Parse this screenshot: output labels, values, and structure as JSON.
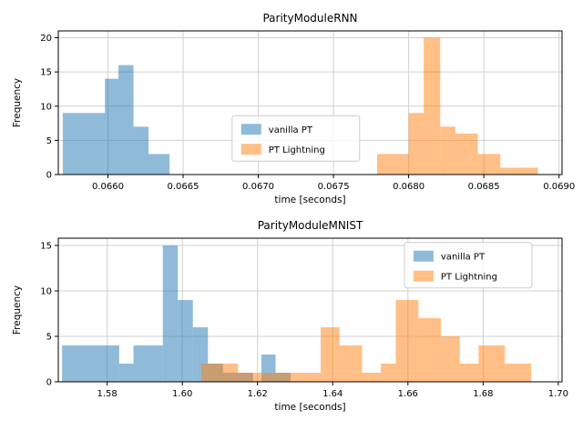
{
  "figure": {
    "background": "#ffffff",
    "grid_color": "#d0d0d0",
    "spine_color": "#000000"
  },
  "chart_data": [
    {
      "type": "bar",
      "subtype": "histogram",
      "title": "ParityModuleRNN",
      "xlabel": "time [seconds]",
      "ylabel": "Frequency",
      "xlim": [
        0.06567,
        0.06902
      ],
      "ylim": [
        0,
        21
      ],
      "xticks": [
        0.066,
        0.0665,
        0.067,
        0.0675,
        0.068,
        0.0685,
        0.069
      ],
      "xtick_labels": [
        "0.0660",
        "0.0665",
        "0.0670",
        "0.0675",
        "0.0680",
        "0.0685",
        "0.0690"
      ],
      "yticks": [
        0,
        5,
        10,
        15,
        20
      ],
      "ytick_labels": [
        "0",
        "5",
        "10",
        "15",
        "20"
      ],
      "grid": true,
      "legend": {
        "entries": [
          "vanilla PT",
          "PT Lightning"
        ],
        "x": 0.345,
        "y": 0.59
      },
      "series": [
        {
          "name": "vanilla PT",
          "color": "#1f77b4",
          "alpha": 0.5,
          "bars": [
            {
              "x0": 0.0657,
              "x1": 0.06598,
              "h": 9
            },
            {
              "x0": 0.06598,
              "x1": 0.06607,
              "h": 14
            },
            {
              "x0": 0.06607,
              "x1": 0.06617,
              "h": 16
            },
            {
              "x0": 0.06617,
              "x1": 0.06627,
              "h": 7
            },
            {
              "x0": 0.06627,
              "x1": 0.06641,
              "h": 3
            }
          ]
        },
        {
          "name": "PT Lightning",
          "color": "#ff7f0e",
          "alpha": 0.5,
          "bars": [
            {
              "x0": 0.06779,
              "x1": 0.068,
              "h": 3
            },
            {
              "x0": 0.068,
              "x1": 0.0681,
              "h": 9
            },
            {
              "x0": 0.0681,
              "x1": 0.06821,
              "h": 20
            },
            {
              "x0": 0.06821,
              "x1": 0.06831,
              "h": 7
            },
            {
              "x0": 0.06831,
              "x1": 0.06846,
              "h": 6
            },
            {
              "x0": 0.06846,
              "x1": 0.06861,
              "h": 3
            },
            {
              "x0": 0.06861,
              "x1": 0.06886,
              "h": 1
            }
          ]
        }
      ]
    },
    {
      "type": "bar",
      "subtype": "histogram",
      "title": "ParityModuleMNIST",
      "xlabel": "time [seconds]",
      "ylabel": "Frequency",
      "xlim": [
        1.567,
        1.701
      ],
      "ylim": [
        0,
        15.8
      ],
      "xticks": [
        1.58,
        1.6,
        1.62,
        1.64,
        1.66,
        1.68,
        1.7
      ],
      "xtick_labels": [
        "1.58",
        "1.60",
        "1.62",
        "1.64",
        "1.66",
        "1.68",
        "1.70"
      ],
      "yticks": [
        0,
        5,
        10,
        15
      ],
      "ytick_labels": [
        "0",
        "5",
        "10",
        "15"
      ],
      "grid": true,
      "legend": {
        "entries": [
          "vanilla PT",
          "PT Lightning"
        ],
        "x": 0.687,
        "y": 0.03
      },
      "series": [
        {
          "name": "vanilla PT",
          "color": "#1f77b4",
          "alpha": 0.5,
          "bars": [
            {
              "x0": 1.568,
              "x1": 1.5832,
              "h": 4
            },
            {
              "x0": 1.5832,
              "x1": 1.587,
              "h": 2
            },
            {
              "x0": 1.587,
              "x1": 1.5948,
              "h": 4
            },
            {
              "x0": 1.5948,
              "x1": 1.5988,
              "h": 15
            },
            {
              "x0": 1.5988,
              "x1": 1.6028,
              "h": 9
            },
            {
              "x0": 1.6028,
              "x1": 1.6068,
              "h": 6
            },
            {
              "x0": 1.6068,
              "x1": 1.6108,
              "h": 2
            },
            {
              "x0": 1.6108,
              "x1": 1.6188,
              "h": 1
            },
            {
              "x0": 1.621,
              "x1": 1.6248,
              "h": 3
            },
            {
              "x0": 1.6248,
              "x1": 1.6288,
              "h": 1
            }
          ]
        },
        {
          "name": "PT Lightning",
          "color": "#ff7f0e",
          "alpha": 0.5,
          "bars": [
            {
              "x0": 1.605,
              "x1": 1.6148,
              "h": 2
            },
            {
              "x0": 1.6148,
              "x1": 1.6228,
              "h": 1
            },
            {
              "x0": 1.6228,
              "x1": 1.6328,
              "h": 1
            },
            {
              "x0": 1.6328,
              "x1": 1.6368,
              "h": 1
            },
            {
              "x0": 1.6368,
              "x1": 1.6418,
              "h": 6
            },
            {
              "x0": 1.6418,
              "x1": 1.6478,
              "h": 4
            },
            {
              "x0": 1.6478,
              "x1": 1.6528,
              "h": 1
            },
            {
              "x0": 1.6528,
              "x1": 1.6568,
              "h": 2
            },
            {
              "x0": 1.6568,
              "x1": 1.6628,
              "h": 9
            },
            {
              "x0": 1.6628,
              "x1": 1.6688,
              "h": 7
            },
            {
              "x0": 1.6688,
              "x1": 1.6738,
              "h": 5
            },
            {
              "x0": 1.6738,
              "x1": 1.6788,
              "h": 2
            },
            {
              "x0": 1.6788,
              "x1": 1.6858,
              "h": 4
            },
            {
              "x0": 1.6858,
              "x1": 1.6928,
              "h": 2
            }
          ]
        }
      ]
    }
  ]
}
